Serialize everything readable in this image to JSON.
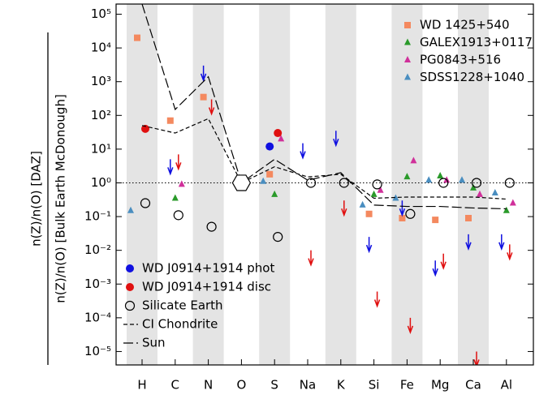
{
  "chart_data": {
    "type": "scatter",
    "categories": [
      "H",
      "C",
      "N",
      "O",
      "S",
      "Na",
      "K",
      "Si",
      "Fe",
      "Mg",
      "Ca",
      "Al"
    ],
    "ylabel_numerator": "n(Z)/n(O) [DAZ]",
    "ylabel_denominator": "n(Z)/n(O) [Bulk Earth McDonough]",
    "log_y": true,
    "ylim": [
      4e-06,
      200000
    ],
    "yticks": [
      {
        "value": 1e-05,
        "label": "10⁻⁵"
      },
      {
        "value": 0.0001,
        "label": "10⁻⁴"
      },
      {
        "value": 0.001,
        "label": "10⁻³"
      },
      {
        "value": 0.01,
        "label": "10⁻²"
      },
      {
        "value": 0.1,
        "label": "10⁻¹"
      },
      {
        "value": 1,
        "label": "10⁰"
      },
      {
        "value": 10,
        "label": "10¹"
      },
      {
        "value": 100,
        "label": "10²"
      },
      {
        "value": 1000,
        "label": "10³"
      },
      {
        "value": 10000,
        "label": "10⁴"
      },
      {
        "value": 100000,
        "label": "10⁵"
      }
    ],
    "reference_line": 1,
    "series": [
      {
        "name": "WD 1425+540",
        "color": "#f4895f",
        "marker": "square",
        "legend": "upper right",
        "values": [
          20000,
          70,
          350,
          null,
          1.8,
          null,
          null,
          0.12,
          0.09,
          0.08,
          0.09,
          null
        ]
      },
      {
        "name": "GALEX1913+0117",
        "color": "#2a9a2a",
        "marker": "triangle",
        "legend": "upper right",
        "values": [
          null,
          0.35,
          null,
          null,
          0.45,
          null,
          null,
          0.45,
          1.5,
          1.6,
          0.7,
          0.15
        ]
      },
      {
        "name": "PG0843+516",
        "color": "#d0309a",
        "marker": "triangle",
        "legend": "upper right",
        "values": [
          null,
          0.9,
          null,
          null,
          20,
          null,
          null,
          0.6,
          4.5,
          1.2,
          0.45,
          0.25
        ]
      },
      {
        "name": "SDSS1228+1040",
        "color": "#4a8ec0",
        "marker": "triangle",
        "legend": "upper right",
        "values": [
          0.15,
          null,
          null,
          null,
          1.1,
          null,
          null,
          0.22,
          0.35,
          1.2,
          1.2,
          0.5
        ]
      },
      {
        "name": "WD J0914+1914 phot",
        "color": "#1010e0",
        "marker": "circle",
        "legend": "lower left",
        "values": [
          null,
          5,
          3000,
          null,
          12,
          15,
          35,
          0.025,
          0.3,
          0.005,
          0.03,
          0.03
        ],
        "upper_limits": [
          false,
          true,
          true,
          false,
          false,
          true,
          true,
          true,
          true,
          true,
          true,
          true
        ]
      },
      {
        "name": "WD J0914+1914 disc",
        "color": "#e01010",
        "marker": "circle",
        "legend": "lower left",
        "values": [
          40,
          7,
          300,
          null,
          30,
          0.01,
          0.3,
          0.0006,
          0.0001,
          0.008,
          1e-05,
          0.015
        ],
        "upper_limits": [
          false,
          true,
          true,
          false,
          false,
          true,
          true,
          true,
          true,
          true,
          true,
          true
        ]
      },
      {
        "name": "Silicate Earth",
        "color": "#000000",
        "marker": "open-circle",
        "legend": "lower left",
        "values": [
          0.25,
          0.11,
          0.05,
          null,
          0.025,
          1,
          1,
          0.9,
          0.12,
          1,
          1,
          1
        ]
      },
      {
        "name": "CI Chondrite",
        "color": "#000000",
        "marker": "dashed",
        "legend": "lower left",
        "values": [
          50,
          30,
          80,
          1,
          3,
          1.5,
          1.8,
          0.35,
          0.38,
          0.38,
          0.38,
          0.33
        ]
      },
      {
        "name": "Sun",
        "color": "#000000",
        "marker": "longdash",
        "legend": "lower left",
        "values": [
          200000,
          150,
          1400,
          1,
          5,
          1.2,
          2,
          0.22,
          0.2,
          0.2,
          0.18,
          0.17
        ]
      }
    ]
  }
}
